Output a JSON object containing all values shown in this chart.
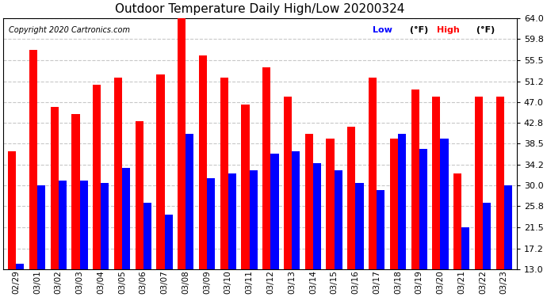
{
  "title": "Outdoor Temperature Daily High/Low 20200324",
  "copyright": "Copyright 2020 Cartronics.com",
  "low_color": "#0000ff",
  "high_color": "#ff0000",
  "background_color": "#ffffff",
  "plot_bg_color": "#ffffff",
  "grid_color": "#c8c8c8",
  "ylim": [
    13.0,
    64.0
  ],
  "yticks": [
    13.0,
    17.2,
    21.5,
    25.8,
    30.0,
    34.2,
    38.5,
    42.8,
    47.0,
    51.2,
    55.5,
    59.8,
    64.0
  ],
  "dates": [
    "02/29",
    "03/01",
    "03/02",
    "03/03",
    "03/04",
    "03/05",
    "03/06",
    "03/07",
    "03/08",
    "03/09",
    "03/10",
    "03/11",
    "03/12",
    "03/13",
    "03/14",
    "03/15",
    "03/16",
    "03/17",
    "03/18",
    "03/19",
    "03/20",
    "03/21",
    "03/22",
    "03/23"
  ],
  "high": [
    37.0,
    57.5,
    46.0,
    44.5,
    50.5,
    52.0,
    43.0,
    52.5,
    64.5,
    56.5,
    52.0,
    46.5,
    54.0,
    48.0,
    40.5,
    39.5,
    42.0,
    52.0,
    39.5,
    49.5,
    48.0,
    32.5,
    48.0,
    48.0
  ],
  "low": [
    14.0,
    30.0,
    31.0,
    31.0,
    30.5,
    33.5,
    26.5,
    24.0,
    40.5,
    31.5,
    32.5,
    33.0,
    36.5,
    37.0,
    34.5,
    33.0,
    30.5,
    29.0,
    40.5,
    37.5,
    39.5,
    21.5,
    26.5,
    30.0
  ]
}
